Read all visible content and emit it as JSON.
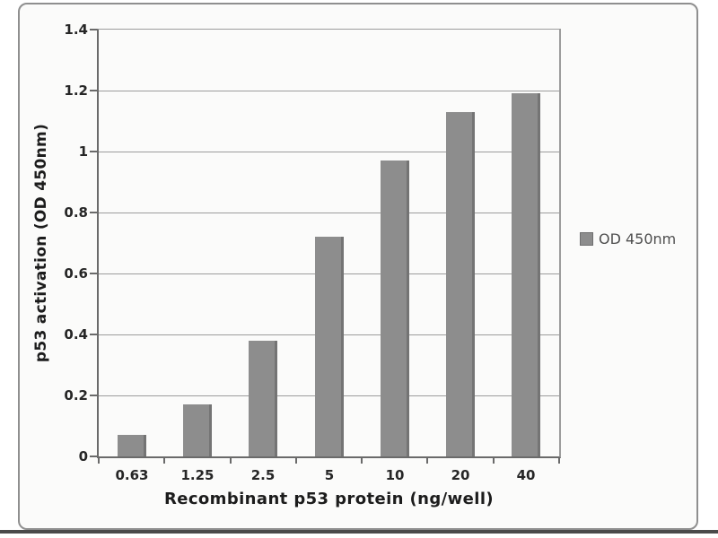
{
  "chart_data": {
    "type": "bar",
    "title": "",
    "categories": [
      "0.63",
      "1.25",
      "2.5",
      "5",
      "10",
      "20",
      "40"
    ],
    "series": [
      {
        "name": "OD 450nm",
        "values": [
          0.07,
          0.17,
          0.38,
          0.72,
          0.97,
          1.13,
          1.19
        ]
      }
    ],
    "xlabel": "Recombinant p53 protein (ng/well)",
    "ylabel": "p53 activation (OD 450nm)",
    "ylim": [
      0,
      1.4
    ],
    "ytick_labels": [
      "0",
      "0.2",
      "0.4",
      "0.6",
      "0.8",
      "1",
      "1.2",
      "1.4"
    ],
    "grid": "horizontal",
    "legend_position": "right",
    "legend_label": "OD 450nm",
    "bar_color": "#8d8d8d",
    "bar_edge_color": "#747474",
    "grid_color": "#9c9c9c",
    "axis_color": "#6a6a6a",
    "tick_text_color": "#262626",
    "title_text_color": "#1c1c1c",
    "legend_text_color": "#4f4f4f",
    "frame_border_color": "#8f8f8f",
    "background_color": "#fbfbfa"
  }
}
